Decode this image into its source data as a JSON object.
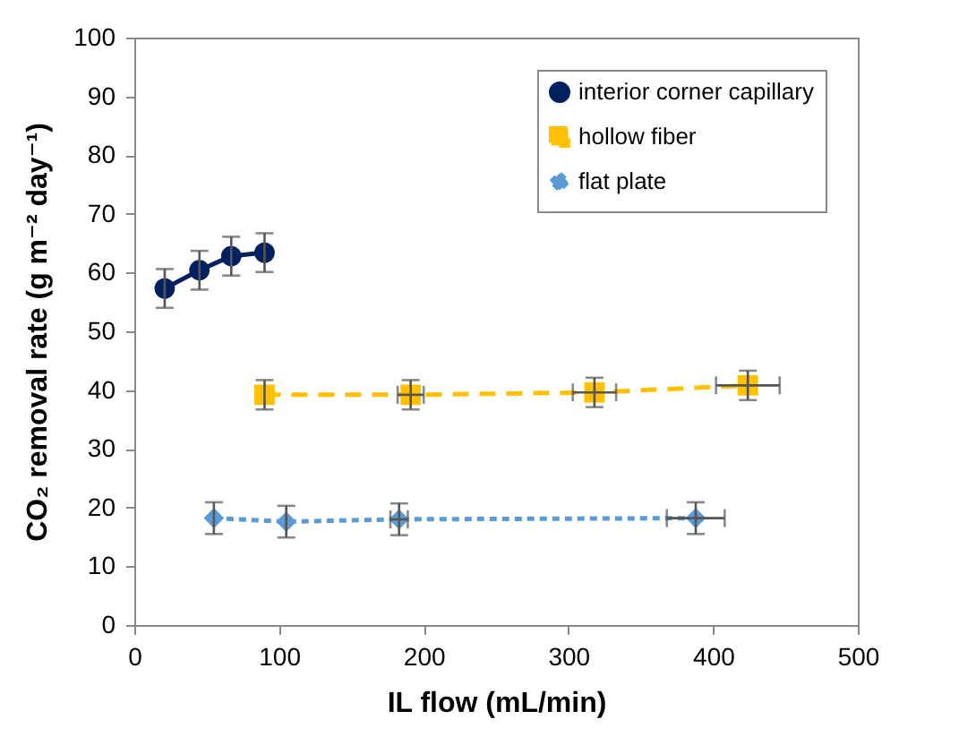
{
  "chart_data": {
    "type": "line",
    "xlabel": "IL flow (mL/min)",
    "ylabel": "CO₂ removal rate (g m⁻² day⁻¹)",
    "xlim": [
      0,
      500
    ],
    "xticks": [
      0,
      100,
      200,
      300,
      400,
      500
    ],
    "ylim": [
      0,
      100
    ],
    "yticks": [
      0,
      10,
      20,
      30,
      40,
      50,
      60,
      70,
      80,
      90,
      100
    ],
    "grid": false,
    "legend": "top right",
    "series": [
      {
        "name": "interior corner capillary",
        "color": "#002060",
        "marker": "circle",
        "line_style": "solid",
        "x": [
          21,
          45,
          67,
          90
        ],
        "values": [
          57.3,
          60.4,
          62.8,
          63.4
        ],
        "errors": [
          3.3,
          3.3,
          3.3,
          3.3
        ],
        "xerrors": [
          null,
          null,
          null,
          null
        ]
      },
      {
        "name": "hollow fiber",
        "color": "#ffc000",
        "marker": "square",
        "line_style": "dashed",
        "x": [
          90,
          191,
          318,
          424
        ],
        "values": [
          39.2,
          39.2,
          39.6,
          40.8
        ],
        "errors": [
          2.5,
          2.5,
          2.5,
          2.5
        ],
        "xerrors": [
          null,
          9,
          15,
          22
        ]
      },
      {
        "name": "flat plate",
        "color": "#5b9bd5",
        "marker": "diamond",
        "line_style": "dotted",
        "x": [
          55,
          105,
          183,
          388
        ],
        "values": [
          18.2,
          17.6,
          18,
          18.2
        ],
        "errors": [
          2.7,
          2.7,
          2.7,
          2.7
        ],
        "xerrors": [
          null,
          null,
          6,
          20
        ]
      }
    ]
  }
}
